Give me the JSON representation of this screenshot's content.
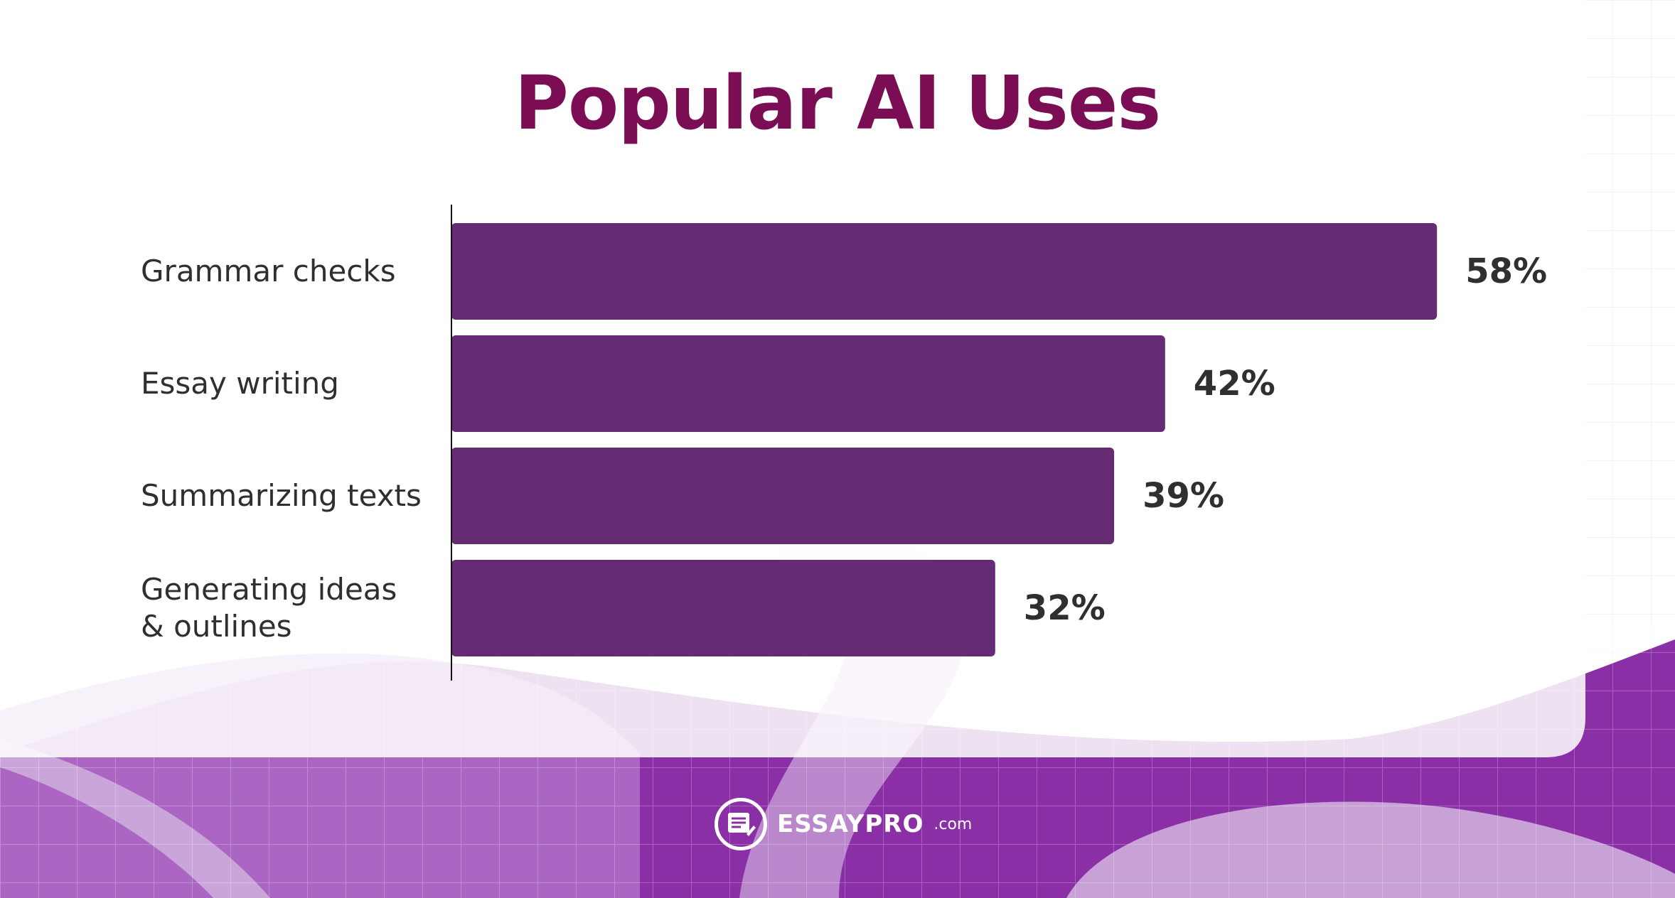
{
  "chart_data": {
    "type": "bar",
    "orientation": "horizontal",
    "title": "Popular AI Uses",
    "categories": [
      "Grammar checks",
      "Essay writing",
      "Summarizing texts",
      "Generating ideas\n& outlines"
    ],
    "values": [
      58,
      42,
      39,
      32
    ],
    "value_labels": [
      "58%",
      "42%",
      "39%",
      "32%"
    ],
    "xlabel": "",
    "ylabel": "",
    "xlim": [
      0,
      100
    ],
    "grid": false,
    "legend": "none",
    "bar_color": "#652b73"
  },
  "brand": {
    "name": "ESSAYPRO",
    "tld": ".com",
    "icon": "document-pencil-icon"
  },
  "colors": {
    "title": "#7b0d54",
    "accent": "#9a3fb6"
  }
}
